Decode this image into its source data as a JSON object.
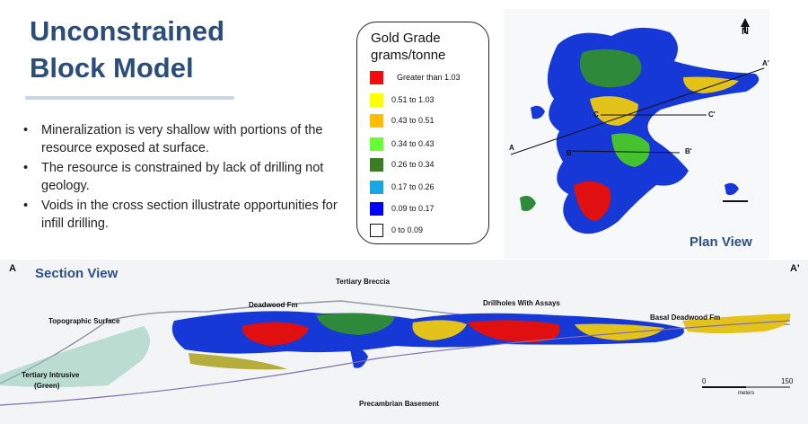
{
  "slide": {
    "title_line1": "Unconstrained",
    "title_line2": "Block Model",
    "bullets": [
      "Mineralization is very shallow with portions of the resource exposed at surface.",
      "The resource is constrained by lack of drilling not geology.",
      "Voids in the cross section illustrate opportunities for infill drilling."
    ]
  },
  "legend": {
    "title_line1": "Gold Grade",
    "title_line2": "grams/tonne",
    "items": [
      {
        "label": "Greater than 1.03",
        "color": "#f20d0d"
      },
      {
        "label": "0.51 to 1.03",
        "color": "#ffff00"
      },
      {
        "label": "0.43 to 0.51",
        "color": "#ffbf00"
      },
      {
        "label": "0.34 to 0.43",
        "color": "#66ff33"
      },
      {
        "label": "0.26 to 0.34",
        "color": "#3a7d23"
      },
      {
        "label": "0.17 to 0.26",
        "color": "#18a6e6"
      },
      {
        "label": "0.09 to 0.17",
        "color": "#0000ff"
      },
      {
        "label": "0 to 0.09",
        "color": "#ffffff"
      }
    ]
  },
  "plan_view": {
    "caption": "Plan View",
    "north": "N",
    "labels": {
      "a": "A",
      "a_prime": "A'",
      "b": "B",
      "b_prime": "B'",
      "c": "C",
      "c_prime": "C'"
    }
  },
  "section_view": {
    "caption": "Section View",
    "end_left": "A",
    "end_right": "A'",
    "annotations": {
      "tertiary_breccia": "Tertiary Breccia",
      "deadwood": "Deadwood Fm",
      "drillholes": "Drillholes With Assays",
      "topographic": "Topographic Surface",
      "basal": "Basal Deadwood Fm",
      "intrusive_1": "Tertiary Intrusive",
      "intrusive_2": "(Green)",
      "basement": "Precambrian Basement"
    },
    "scale": {
      "start": "0",
      "end": "150",
      "unit": "meters"
    }
  }
}
